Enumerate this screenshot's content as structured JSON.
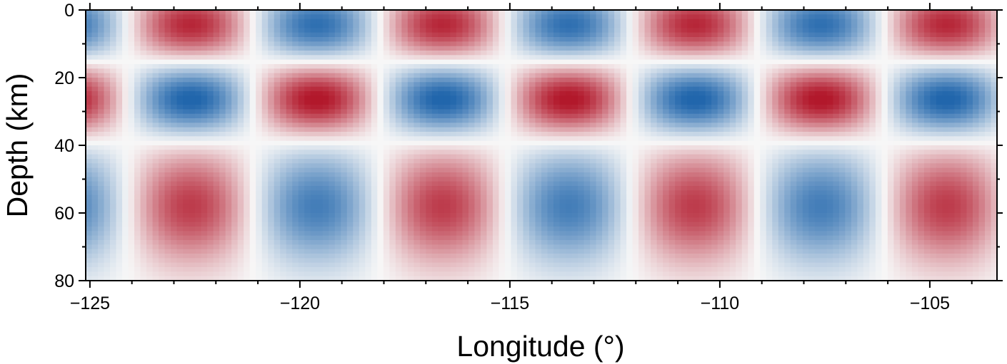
{
  "chart_data": {
    "type": "heatmap",
    "title": "",
    "xlabel": "Longitude (°)",
    "ylabel": "Depth (km)",
    "xlim": [
      -125.1,
      -103.4
    ],
    "ylim": [
      0,
      80
    ],
    "y_inverted": true,
    "x_ticks": [
      {
        "value": -125,
        "label": "−125"
      },
      {
        "value": -120,
        "label": "−120"
      },
      {
        "value": -115,
        "label": "−115"
      },
      {
        "value": -110,
        "label": "−110"
      },
      {
        "value": -105,
        "label": "−105"
      }
    ],
    "x_minor_ticks": [
      -124,
      -123,
      -122,
      -121,
      -119,
      -118,
      -117,
      -116,
      -114,
      -113,
      -112,
      -111,
      -109,
      -108,
      -107,
      -106,
      -104
    ],
    "y_ticks": [
      {
        "value": 0,
        "label": "0"
      },
      {
        "value": 20,
        "label": "20"
      },
      {
        "value": 40,
        "label": "40"
      },
      {
        "value": 60,
        "label": "60"
      },
      {
        "value": 80,
        "label": "80"
      }
    ],
    "y_minor_ticks": [
      10,
      30,
      50,
      70
    ],
    "field": {
      "description_x": "sin(2π(lon - (-124.1))/6)",
      "x_wavelength_deg": 6,
      "x_phase_lon": -124.1,
      "depth_bands": [
        {
          "center": 4.5,
          "sign": -1,
          "amplitude": 0.9
        },
        {
          "center": 26.5,
          "sign": 1,
          "amplitude": 1.0
        },
        {
          "center": 58,
          "sign": -1,
          "amplitude": 0.8
        }
      ]
    },
    "colormap": {
      "negative": "#2166ac",
      "mid": "#f7f7f7",
      "positive": "#b2182b"
    }
  }
}
